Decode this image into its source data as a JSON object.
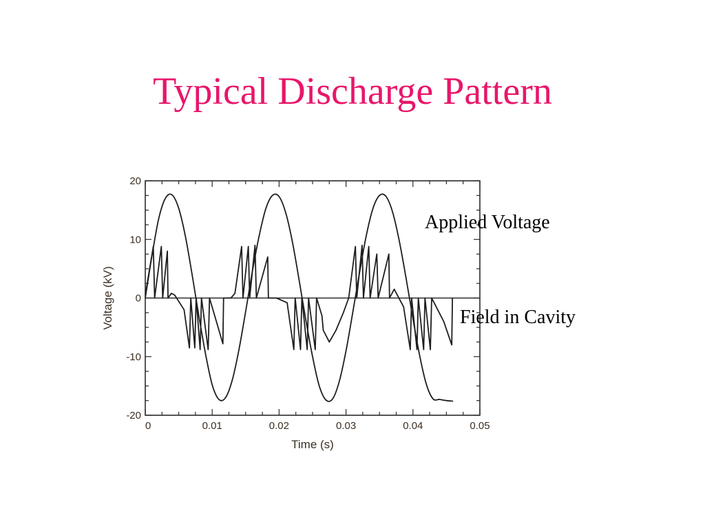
{
  "slide": {
    "title": "Typical Discharge Pattern"
  },
  "annotations": {
    "applied_voltage": "Applied Voltage",
    "field_in_cavity": "Field in Cavity"
  },
  "chart_data": {
    "type": "line",
    "xlabel": "Time (s)",
    "ylabel": "Voltage (kV)",
    "xlim": [
      0,
      0.05
    ],
    "ylim": [
      -20,
      20
    ],
    "x_ticks": [
      "0",
      "0.01",
      "0.02",
      "0.03",
      "0.04",
      "0.05"
    ],
    "y_ticks": [
      "20",
      "10",
      "0",
      "-10",
      "-20"
    ],
    "grid": false,
    "series": [
      {
        "name": "Applied Voltage",
        "x": [
          0,
          0.001,
          0.002,
          0.003,
          0.004,
          0.005,
          0.006,
          0.007,
          0.008,
          0.009,
          0.01,
          0.011,
          0.012,
          0.013,
          0.014,
          0.015,
          0.016,
          0.017,
          0.018,
          0.019,
          0.02,
          0.021,
          0.022,
          0.023,
          0.024,
          0.025,
          0.026,
          0.027,
          0.028,
          0.029,
          0.03,
          0.031,
          0.032,
          0.033,
          0.034,
          0.035,
          0.036,
          0.037,
          0.038,
          0.039,
          0.04,
          0.041,
          0.042,
          0.043,
          0.044,
          0.045,
          0.046
        ],
        "y": [
          0,
          7.2,
          13.5,
          17.0,
          17.6,
          15.3,
          10.5,
          4.0,
          -3.0,
          -9.5,
          -14.8,
          -17.3,
          -17.0,
          -14.0,
          -8.8,
          -2.3,
          4.5,
          10.5,
          15.2,
          17.5,
          17.3,
          14.5,
          9.5,
          3.0,
          -3.8,
          -10.0,
          -15.0,
          -17.4,
          -17.2,
          -14.2,
          -9.0,
          -2.5,
          4.2,
          10.5,
          15.2,
          17.5,
          17.3,
          14.5,
          9.5,
          3.2,
          -3.5,
          -9.8,
          -14.7,
          -17.2,
          -17.3,
          -17.5,
          -17.6
        ]
      },
      {
        "name": "Field in Cavity",
        "x": [
          0,
          0.0012,
          0.0014,
          0.0024,
          0.0026,
          0.0033,
          0.0034,
          0.0039,
          0.0044,
          0.0058,
          0.0066,
          0.0068,
          0.0074,
          0.0076,
          0.0082,
          0.0084,
          0.0094,
          0.0096,
          0.0116,
          0.0117,
          0.0128,
          0.0134,
          0.0144,
          0.0146,
          0.0154,
          0.0156,
          0.0164,
          0.0166,
          0.0183,
          0.0184,
          0.0196,
          0.0212,
          0.0222,
          0.0224,
          0.0232,
          0.0234,
          0.0242,
          0.0244,
          0.0254,
          0.0256,
          0.0264,
          0.0266,
          0.0275,
          0.0285,
          0.0296,
          0.0304,
          0.0314,
          0.0316,
          0.0324,
          0.0326,
          0.0334,
          0.0336,
          0.0346,
          0.0348,
          0.0364,
          0.0365,
          0.0372,
          0.0386,
          0.0396,
          0.0398,
          0.0406,
          0.0408,
          0.0416,
          0.0418,
          0.0426,
          0.0428,
          0.0446,
          0.0458,
          0.0459
        ],
        "y": [
          0.5,
          8.8,
          0,
          8.8,
          0,
          8.0,
          0,
          0.8,
          0.5,
          -2.0,
          -8.5,
          0,
          -8.5,
          0,
          -8.8,
          0,
          -8.8,
          0,
          -7.8,
          0,
          0,
          0.8,
          8.8,
          0,
          8.8,
          0,
          9.0,
          0,
          7.0,
          0,
          0,
          -0.8,
          -8.8,
          0,
          -8.8,
          0,
          -8.8,
          0,
          -8.8,
          0,
          -3.0,
          -5.5,
          -7.5,
          -5.5,
          -2.5,
          0,
          8.8,
          0,
          9.0,
          0,
          8.8,
          0,
          7.5,
          0,
          7.5,
          0,
          1.5,
          -1.5,
          -8.8,
          0,
          -8.8,
          0,
          -8.8,
          0,
          -8.8,
          0,
          -4.0,
          -8.0,
          0
        ]
      }
    ]
  }
}
